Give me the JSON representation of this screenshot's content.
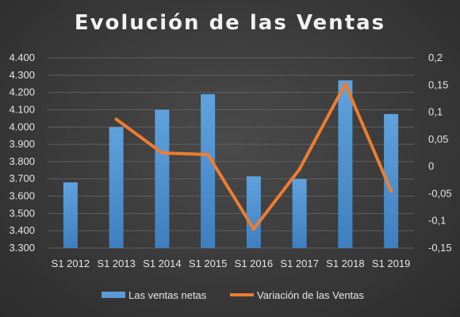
{
  "chart_data": {
    "type": "bar+line",
    "title": "Evolución de las Ventas",
    "categories": [
      "S1 2012",
      "S1 2013",
      "S1 2014",
      "S1 2015",
      "S1 2016",
      "S1 2017",
      "S1 2018",
      "S1 2019"
    ],
    "series": [
      {
        "name": "Las ventas netas",
        "type": "bar",
        "axis": "left",
        "color": "#5b9bd5",
        "values": [
          3680,
          4000,
          4100,
          4190,
          3715,
          3700,
          4270,
          4075
        ]
      },
      {
        "name": "Variación de las Ventas",
        "type": "line",
        "axis": "right",
        "color": "#ed7d31",
        "values": [
          null,
          0.087,
          0.025,
          0.022,
          -0.115,
          -0.005,
          0.152,
          -0.045
        ]
      }
    ],
    "y_left": {
      "min": 3300,
      "max": 4400,
      "step": 100,
      "tick_labels": [
        "3.300",
        "3.400",
        "3.500",
        "3.600",
        "3.700",
        "3.800",
        "3.900",
        "4.000",
        "4.100",
        "4.200",
        "4.300",
        "4.400"
      ]
    },
    "y_right": {
      "min": -0.15,
      "max": 0.2,
      "step": 0.05,
      "tick_labels": [
        "-0,15",
        "-0,1",
        "-0,05",
        "0",
        "0,05",
        "0,1",
        "0,15",
        "0,2"
      ]
    },
    "grid": true,
    "legend_position": "bottom"
  }
}
